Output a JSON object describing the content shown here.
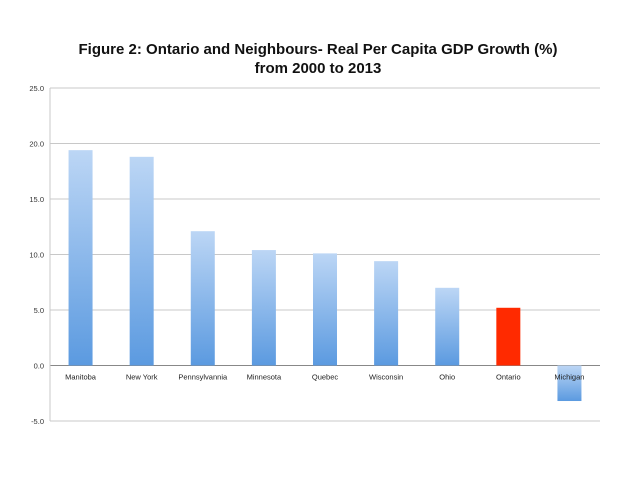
{
  "chart_data": {
    "type": "bar",
    "title_lines": [
      "Figure 2: Ontario and Neighbours- Real Per Capita GDP Growth (%)",
      "from 2000 to 2013"
    ],
    "xlabel": "",
    "ylabel": "",
    "ylim": [
      -5,
      25
    ],
    "yticks": [
      25,
      20,
      15,
      10,
      5,
      0,
      -5
    ],
    "ytick_labels": [
      "25.0",
      "20.0",
      "15.0",
      "10.0",
      "5.0",
      "0.0",
      "-5.0"
    ],
    "grid": true,
    "legend": false,
    "categories": [
      "Manitoba",
      "New York",
      "Pennsylvannia",
      "Minnesota",
      "Quebec",
      "Wisconsin",
      "Ohio",
      "Ontario",
      "Michigan"
    ],
    "values": [
      19.4,
      18.8,
      12.1,
      10.4,
      10.1,
      9.4,
      7.0,
      5.2,
      -3.2
    ],
    "highlight_category": "Ontario",
    "colors": {
      "bar_gradient_top": "#bcd6f5",
      "bar_gradient_bottom": "#5b9ae0",
      "highlight": "#ff2a00",
      "grid": "#c8c8c8",
      "axis": "#888888"
    }
  }
}
